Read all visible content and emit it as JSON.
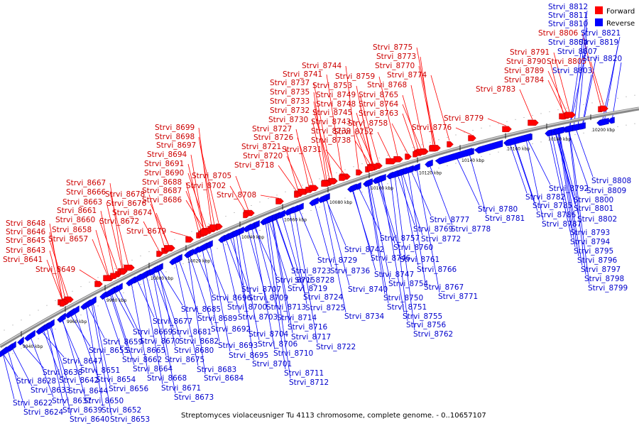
{
  "caption": "Streptomyces violaceusniger Tu 4113 chromosome, complete genome. - 0..10657107",
  "legend": [
    {
      "label": "Forward",
      "color": "#ff0000"
    },
    {
      "label": "Reverse",
      "color": "#0000ff"
    }
  ],
  "axis_ticks": [
    "9940 kbp",
    "9960 kbp",
    "9980 kbp",
    "10000 kbp",
    "10020 kbp",
    "10040 kbp",
    "10060 kbp",
    "10080 kbp",
    "10100 kbp",
    "10120 kbp",
    "10140 kbp",
    "10160 kbp",
    "10180 kbp",
    "10200 kbp"
  ],
  "forward_labels": [
    [
      "Strvi_8648",
      8,
      318
    ],
    [
      "Strvi_8646",
      8,
      330
    ],
    [
      "Strvi_8645",
      8,
      342
    ],
    [
      "Strvi_8643",
      8,
      356
    ],
    [
      "Strvi_8641",
      4,
      369
    ],
    [
      "Strvi_8649",
      50,
      383
    ],
    [
      "Strvi_8658",
      73,
      327
    ],
    [
      "Strvi_8657",
      68,
      340
    ],
    [
      "Strvi_8660",
      78,
      313
    ],
    [
      "Strvi_8661",
      80,
      300
    ],
    [
      "Strvi_8663",
      88,
      288
    ],
    [
      "Strvi_8666",
      93,
      274
    ],
    [
      "Strvi_8667",
      93,
      261
    ],
    [
      "Strvi_8678",
      148,
      277
    ],
    [
      "Strvi_8676",
      150,
      290
    ],
    [
      "Strvi_8674",
      158,
      303
    ],
    [
      "Strvi_8672",
      140,
      315
    ],
    [
      "Strvi_8679",
      178,
      329
    ],
    [
      "Strvi_8699",
      218,
      183
    ],
    [
      "Strvi_8698",
      218,
      196
    ],
    [
      "Strvi_8697",
      220,
      208
    ],
    [
      "Strvi_8694",
      207,
      221
    ],
    [
      "Strvi_8691",
      203,
      234
    ],
    [
      "Strvi_8690",
      203,
      247
    ],
    [
      "Strvi_8688",
      200,
      260
    ],
    [
      "Strvi_8687",
      200,
      272
    ],
    [
      "Strvi_8686",
      200,
      285
    ],
    [
      "Strvi_8705",
      270,
      251
    ],
    [
      "Strvi_8702",
      262,
      265
    ],
    [
      "Strvi_8708",
      305,
      278
    ],
    [
      "Strvi_8721",
      340,
      210
    ],
    [
      "Strvi_8720",
      342,
      223
    ],
    [
      "Strvi_8718",
      330,
      236
    ],
    [
      "Strvi_8727",
      355,
      185
    ],
    [
      "Strvi_8726",
      357,
      197
    ],
    [
      "Strvi_8731",
      397,
      214
    ],
    [
      "Strvi_8744",
      425,
      96
    ],
    [
      "Strvi_8741",
      398,
      108
    ],
    [
      "Strvi_8737",
      380,
      120
    ],
    [
      "Strvi_8735",
      380,
      133
    ],
    [
      "Strvi_8733",
      380,
      146
    ],
    [
      "Strvi_8732",
      380,
      159
    ],
    [
      "Strvi_8730",
      378,
      172
    ],
    [
      "Strvi_8753",
      440,
      124
    ],
    [
      "Strvi_8749",
      445,
      137
    ],
    [
      "Strvi_8748",
      445,
      150
    ],
    [
      "Strvi_8745",
      440,
      162
    ],
    [
      "Strvi_8743",
      438,
      175
    ],
    [
      "Strvi_8739",
      438,
      188
    ],
    [
      "Strvi_8738",
      438,
      201
    ],
    [
      "Strvi_8759",
      472,
      111
    ],
    [
      "Strvi_8752",
      470,
      189
    ],
    [
      "Strvi_8758",
      490,
      177
    ],
    [
      "Strvi_8775",
      525,
      70
    ],
    [
      "Strvi_8773",
      530,
      83
    ],
    [
      "Strvi_8770",
      528,
      96
    ],
    [
      "Strvi_8774",
      545,
      109
    ],
    [
      "Strvi_8768",
      517,
      123
    ],
    [
      "Strvi_8765",
      505,
      137
    ],
    [
      "Strvi_8764",
      505,
      150
    ],
    [
      "Strvi_8763",
      505,
      163
    ],
    [
      "Strvi_8776",
      580,
      183
    ],
    [
      "Strvi_8779",
      625,
      170
    ],
    [
      "Strvi_8783",
      670,
      129
    ],
    [
      "Strvi_8784",
      710,
      116
    ],
    [
      "Strvi_8789",
      710,
      103
    ],
    [
      "Strvi_8790",
      713,
      90
    ],
    [
      "Strvi_8791",
      718,
      77
    ],
    [
      "Strvi_8806",
      758,
      50
    ],
    [
      "Strvi_8805",
      770,
      90
    ]
  ],
  "reverse_labels": [
    [
      "Strvi_8812",
      772,
      13
    ],
    [
      "Strvi_8811",
      772,
      25
    ],
    [
      "Strvi_8810",
      772,
      37
    ],
    [
      "Strvi_8804",
      772,
      63
    ],
    [
      "Strvi_8807",
      785,
      76
    ],
    [
      "Strvi_8803",
      778,
      103
    ],
    [
      "Strvi_8821",
      818,
      50
    ],
    [
      "Strvi_8819",
      815,
      63
    ],
    [
      "Strvi_8820",
      820,
      86
    ],
    [
      "Strvi_8808",
      833,
      258
    ],
    [
      "Strvi_8809",
      826,
      272
    ],
    [
      "Strvi_8792",
      773,
      269
    ],
    [
      "Strvi_8800",
      808,
      285
    ],
    [
      "Strvi_8801",
      808,
      297
    ],
    [
      "Strvi_8802",
      813,
      312
    ],
    [
      "Strvi_8782",
      740,
      281
    ],
    [
      "Strvi_8785",
      750,
      293
    ],
    [
      "Strvi_8786",
      755,
      306
    ],
    [
      "Strvi_8787",
      763,
      319
    ],
    [
      "Strvi_8793",
      803,
      331
    ],
    [
      "Strvi_8794",
      803,
      344
    ],
    [
      "Strvi_8795",
      808,
      357
    ],
    [
      "Strvi_8796",
      813,
      370
    ],
    [
      "Strvi_8797",
      818,
      383
    ],
    [
      "Strvi_8798",
      823,
      396
    ],
    [
      "Strvi_8799",
      828,
      409
    ],
    [
      "Strvi_8780",
      673,
      298
    ],
    [
      "Strvi_8781",
      683,
      311
    ],
    [
      "Strvi_8777",
      605,
      313
    ],
    [
      "Strvi_8778",
      635,
      326
    ],
    [
      "Strvi_8769",
      582,
      326
    ],
    [
      "Strvi_8772",
      593,
      340
    ],
    [
      "Strvi_8757",
      535,
      339
    ],
    [
      "Strvi_8760",
      554,
      352
    ],
    [
      "Strvi_8742",
      485,
      355
    ],
    [
      "Strvi_8761",
      563,
      369
    ],
    [
      "Strvi_8766",
      587,
      383
    ],
    [
      "Strvi_8746",
      522,
      367
    ],
    [
      "Strvi_8747",
      527,
      390
    ],
    [
      "Strvi_8767",
      597,
      408
    ],
    [
      "Strvi_8754",
      547,
      403
    ],
    [
      "Strvi_8771",
      617,
      421
    ],
    [
      "Strvi_8736",
      465,
      385
    ],
    [
      "Strvi_8729",
      447,
      370
    ],
    [
      "Strvi_8740",
      490,
      411
    ],
    [
      "Strvi_8750",
      540,
      423
    ],
    [
      "Strvi_8751",
      545,
      436
    ],
    [
      "Strvi_8755",
      567,
      449
    ],
    [
      "Strvi_8756",
      572,
      461
    ],
    [
      "Strvi_8762",
      582,
      474
    ],
    [
      "Strvi_8734",
      485,
      449
    ],
    [
      "Strvi_8723",
      410,
      385
    ],
    [
      "Strvi_8728",
      415,
      398
    ],
    [
      "Strvi_8724",
      427,
      422
    ],
    [
      "Strvi_8725",
      430,
      437
    ],
    [
      "Strvi_8719",
      405,
      410
    ],
    [
      "Strvi_8715",
      388,
      398
    ],
    [
      "Strvi_8707",
      340,
      411
    ],
    [
      "Strvi_8709",
      350,
      423
    ],
    [
      "Strvi_8700",
      320,
      436
    ],
    [
      "Strvi_8703",
      335,
      450
    ],
    [
      "Strvi_8713",
      375,
      436
    ],
    [
      "Strvi_8714",
      390,
      451
    ],
    [
      "Strvi_8716",
      405,
      464
    ],
    [
      "Strvi_8717",
      410,
      478
    ],
    [
      "Strvi_8722",
      445,
      492
    ],
    [
      "Strvi_8704",
      350,
      474
    ],
    [
      "Strvi_8706",
      363,
      488
    ],
    [
      "Strvi_8710",
      385,
      501
    ],
    [
      "Strvi_8701",
      355,
      516
    ],
    [
      "Strvi_8711",
      400,
      529
    ],
    [
      "Strvi_8712",
      407,
      542
    ],
    [
      "Strvi_8696",
      298,
      423
    ],
    [
      "Strvi_8689",
      278,
      452
    ],
    [
      "Strvi_8692",
      297,
      467
    ],
    [
      "Strvi_8693",
      307,
      490
    ],
    [
      "Strvi_8695",
      322,
      504
    ],
    [
      "Strvi_8685",
      255,
      439
    ],
    [
      "Strvi_8677",
      215,
      456
    ],
    [
      "Strvi_8681",
      242,
      471
    ],
    [
      "Strvi_8682",
      252,
      484
    ],
    [
      "Strvi_8680",
      245,
      497
    ],
    [
      "Strvi_8675",
      232,
      510
    ],
    [
      "Strvi_8683",
      277,
      524
    ],
    [
      "Strvi_8684",
      287,
      536
    ],
    [
      "Strvi_8669",
      187,
      471
    ],
    [
      "Strvi_8670",
      197,
      484
    ],
    [
      "Strvi_8665",
      177,
      497
    ],
    [
      "Strvi_8662",
      172,
      510
    ],
    [
      "Strvi_8664",
      187,
      523
    ],
    [
      "Strvi_8668",
      207,
      536
    ],
    [
      "Strvi_8671",
      227,
      550
    ],
    [
      "Strvi_8673",
      245,
      563
    ],
    [
      "Strvi_8659",
      145,
      485
    ],
    [
      "Strvi_8655",
      125,
      497
    ],
    [
      "Strvi_8654",
      135,
      538
    ],
    [
      "Strvi_8656",
      153,
      551
    ],
    [
      "Strvi_8651",
      113,
      525
    ],
    [
      "Strvi_8647",
      88,
      512
    ],
    [
      "Strvi_8642",
      83,
      539
    ],
    [
      "Strvi_8644",
      96,
      554
    ],
    [
      "Strvi_8650",
      118,
      568
    ],
    [
      "Strvi_8652",
      143,
      581
    ],
    [
      "Strvi_8653",
      155,
      594
    ],
    [
      "Strvi_8638",
      60,
      528
    ],
    [
      "Strvi_8628",
      23,
      540
    ],
    [
      "Strvi_8633",
      43,
      553
    ],
    [
      "Strvi_8637",
      73,
      568
    ],
    [
      "Strvi_8639",
      88,
      581
    ],
    [
      "Strvi_8640",
      98,
      594
    ],
    [
      "Strvi_8622",
      18,
      571
    ],
    [
      "Strvi_8624",
      33,
      584
    ]
  ]
}
